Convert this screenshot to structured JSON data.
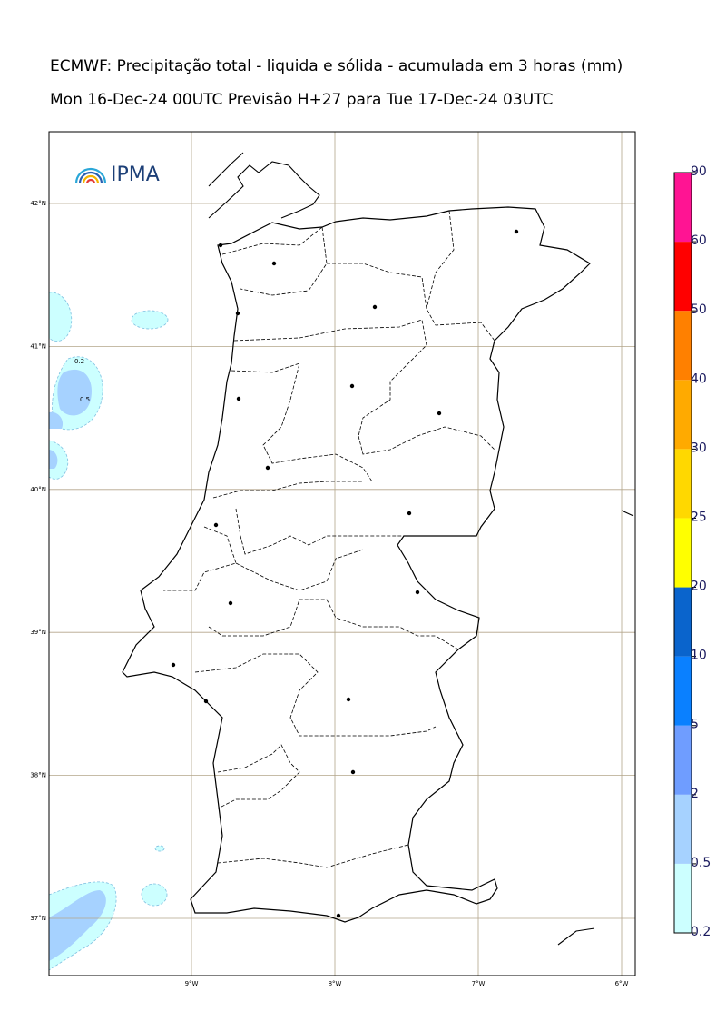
{
  "header": {
    "title": "ECMWF: Precipitação total - liquida e sólida - acumulada em 3 horas (mm)",
    "subtitle": "Mon 16-Dec-24 00UTC Previsão H+27 para Tue 17-Dec-24 03UTC"
  },
  "map": {
    "logo": "IPMA",
    "lat_lines": [
      {
        "value": 42,
        "label": "42°N"
      },
      {
        "value": 41,
        "label": "41°N"
      },
      {
        "value": 40,
        "label": "40°N"
      },
      {
        "value": 39,
        "label": "39°N"
      },
      {
        "value": 38,
        "label": "38°N"
      },
      {
        "value": 37,
        "label": "37°N"
      }
    ],
    "lon_lines": [
      {
        "value": -9,
        "label": "9°W"
      },
      {
        "value": -8,
        "label": "8°W"
      },
      {
        "value": -7,
        "label": "7°W"
      },
      {
        "value": -6,
        "label": "6°W"
      }
    ],
    "contour_labels": [
      "0.2",
      "0.5"
    ]
  },
  "colorbar": {
    "levels": [
      {
        "value": 0.2,
        "label": "0.2"
      },
      {
        "value": 0.5,
        "label": "0.5"
      },
      2,
      5,
      10,
      20,
      25,
      30,
      40,
      50,
      60,
      90
    ],
    "colors": [
      "#ccffff",
      "#a6d2ff",
      "#6f9dff",
      "#0a80ff",
      "#0a64cc",
      "#ffff00",
      "#ffd800",
      "#ffaa00",
      "#ff8000",
      "#ff0000",
      "#ff1493"
    ]
  }
}
